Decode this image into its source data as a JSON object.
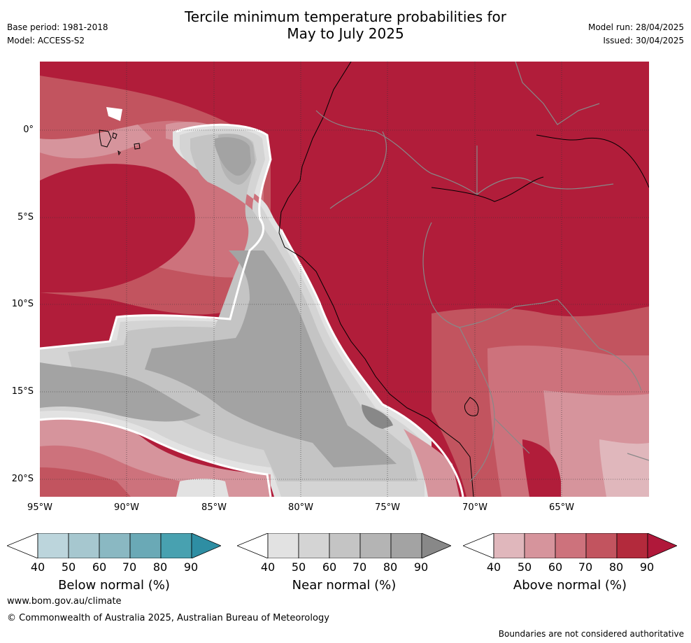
{
  "header": {
    "title_line1": "Tercile minimum temperature probabilities for",
    "title_line2": "May to July 2025",
    "base_period": "Base period: 1981-2018",
    "model": "Model: ACCESS-S2",
    "model_run": "Model run: 28/04/2025",
    "issued": "Issued: 30/04/2025"
  },
  "map": {
    "lat_labels": [
      "0°",
      "5°S",
      "10°S",
      "15°S",
      "20°S"
    ],
    "lon_labels": [
      "95°W",
      "90°W",
      "85°W",
      "80°W",
      "75°W",
      "70°W",
      "65°W"
    ]
  },
  "colorbars": [
    {
      "name": "below",
      "title": "Below normal (%)",
      "ticks": [
        "40",
        "50",
        "60",
        "70",
        "80",
        "90"
      ],
      "colors": [
        "#ffffff",
        "#bcd5dc",
        "#a6c7cf",
        "#8ab8c2",
        "#6aa9b6",
        "#48a1b0",
        "#2e8ea3"
      ]
    },
    {
      "name": "near",
      "title": "Near normal (%)",
      "ticks": [
        "40",
        "50",
        "60",
        "70",
        "80",
        "90"
      ],
      "colors": [
        "#ffffff",
        "#e2e2e2",
        "#d4d4d4",
        "#c4c4c4",
        "#b4b4b4",
        "#a3a3a3",
        "#888888"
      ]
    },
    {
      "name": "above",
      "title": "Above normal (%)",
      "ticks": [
        "40",
        "50",
        "60",
        "70",
        "80",
        "90"
      ],
      "colors": [
        "#ffffff",
        "#e0b7bc",
        "#d6949c",
        "#cd727c",
        "#c2545f",
        "#b32a3c",
        "#b0183a"
      ]
    }
  ],
  "footer": {
    "website": "www.bom.gov.au/climate",
    "copyright": "© Commonwealth of Australia 2025, Australian Bureau of Meteorology",
    "disclaimer": "Boundaries are not considered authoritative"
  }
}
